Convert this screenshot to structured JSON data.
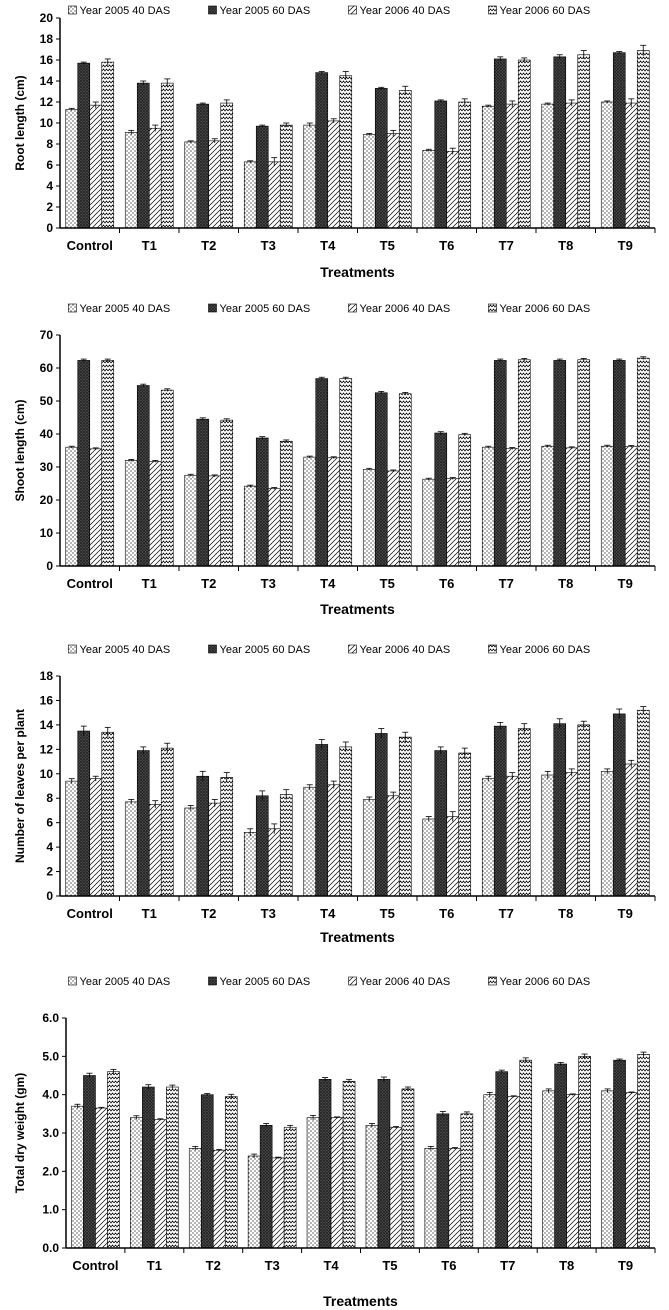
{
  "colors": {
    "axis": "#000000",
    "bar_stroke": "#000000",
    "background": "#ffffff"
  },
  "pattern_names": [
    "dots",
    "dark-crosshatch",
    "diagonal-hatch",
    "wave-zigzag"
  ],
  "chart_data": [
    {
      "type": "bar",
      "xlabel": "Treatments",
      "ylabel": "Root length (cm)",
      "ylim": [
        0,
        20
      ],
      "yticks": [
        "0",
        "2",
        "4",
        "6",
        "8",
        "10",
        "12",
        "14",
        "16",
        "18",
        "20"
      ],
      "grid": false,
      "legend": "top",
      "categories": [
        "Control",
        "T1",
        "T2",
        "T3",
        "T4",
        "T5",
        "T6",
        "T7",
        "T8",
        "T9"
      ],
      "series": [
        {
          "name": "Year 2005 40 DAS",
          "values": [
            11.3,
            9.1,
            8.2,
            6.3,
            9.8,
            8.9,
            7.4,
            11.6,
            11.8,
            12.0
          ],
          "errors": [
            0.1,
            0.2,
            0.1,
            0.1,
            0.2,
            0.1,
            0.1,
            0.1,
            0.1,
            0.1
          ]
        },
        {
          "name": "Year 2005 60 DAS",
          "values": [
            15.7,
            13.8,
            11.8,
            9.7,
            14.8,
            13.3,
            12.1,
            16.1,
            16.3,
            16.7
          ],
          "errors": [
            0.1,
            0.2,
            0.1,
            0.1,
            0.1,
            0.1,
            0.1,
            0.2,
            0.2,
            0.1
          ]
        },
        {
          "name": "Year 2006 40 DAS",
          "values": [
            11.7,
            9.5,
            8.3,
            6.3,
            10.2,
            9.0,
            7.3,
            11.8,
            11.9,
            11.9
          ],
          "errors": [
            0.3,
            0.3,
            0.2,
            0.4,
            0.2,
            0.3,
            0.3,
            0.3,
            0.3,
            0.4
          ]
        },
        {
          "name": "Year 2006 60 DAS",
          "values": [
            15.8,
            13.8,
            11.9,
            9.8,
            14.5,
            13.1,
            12.0,
            16.0,
            16.5,
            16.9
          ],
          "errors": [
            0.3,
            0.4,
            0.3,
            0.2,
            0.4,
            0.4,
            0.3,
            0.2,
            0.4,
            0.5
          ]
        }
      ]
    },
    {
      "type": "bar",
      "xlabel": "Treatments",
      "ylabel": "Shoot length (cm)",
      "ylim": [
        0,
        70
      ],
      "yticks": [
        "0",
        "10",
        "20",
        "30",
        "40",
        "50",
        "60",
        "70"
      ],
      "grid": false,
      "legend": "top",
      "categories": [
        "Control",
        "T1",
        "T2",
        "T3",
        "T4",
        "T5",
        "T6",
        "T7",
        "T8",
        "T9"
      ],
      "series": [
        {
          "name": "Year 2005 40 DAS",
          "values": [
            36.0,
            32.0,
            27.5,
            24.2,
            33.0,
            29.3,
            26.3,
            36.0,
            36.3,
            36.3
          ],
          "errors": [
            0.3,
            0.3,
            0.3,
            0.3,
            0.3,
            0.3,
            0.3,
            0.3,
            0.3,
            0.3
          ]
        },
        {
          "name": "Year 2005 60 DAS",
          "values": [
            62.3,
            54.7,
            44.5,
            38.8,
            56.8,
            52.5,
            40.3,
            62.3,
            62.3,
            62.3
          ],
          "errors": [
            0.4,
            0.4,
            0.4,
            0.4,
            0.4,
            0.4,
            0.4,
            0.4,
            0.4,
            0.4
          ]
        },
        {
          "name": "Year 2006 40 DAS",
          "values": [
            35.5,
            31.7,
            27.3,
            23.5,
            32.8,
            28.8,
            26.5,
            35.6,
            35.8,
            36.2
          ],
          "errors": [
            0.3,
            0.3,
            0.3,
            0.3,
            0.3,
            0.3,
            0.3,
            0.3,
            0.3,
            0.3
          ]
        },
        {
          "name": "Year 2006 60 DAS",
          "values": [
            62.3,
            53.3,
            44.2,
            37.8,
            56.8,
            52.2,
            39.8,
            62.5,
            62.5,
            63.0
          ],
          "errors": [
            0.4,
            0.4,
            0.4,
            0.4,
            0.4,
            0.4,
            0.4,
            0.4,
            0.4,
            0.4
          ]
        }
      ]
    },
    {
      "type": "bar",
      "xlabel": "Treatments",
      "ylabel": "Number of leaves per plant",
      "ylim": [
        0,
        18
      ],
      "yticks": [
        "0",
        "2",
        "4",
        "6",
        "8",
        "10",
        "12",
        "14",
        "16",
        "18"
      ],
      "grid": false,
      "legend": "top",
      "categories": [
        "Control",
        "T1",
        "T2",
        "T3",
        "T4",
        "T5",
        "T6",
        "T7",
        "T8",
        "T9"
      ],
      "series": [
        {
          "name": "Year 2005 40 DAS",
          "values": [
            9.4,
            7.7,
            7.2,
            5.2,
            8.9,
            7.9,
            6.3,
            9.6,
            9.9,
            10.2
          ],
          "errors": [
            0.2,
            0.2,
            0.2,
            0.3,
            0.2,
            0.2,
            0.2,
            0.2,
            0.3,
            0.2
          ]
        },
        {
          "name": "Year 2005 60 DAS",
          "values": [
            13.5,
            11.9,
            9.8,
            8.2,
            12.4,
            13.3,
            11.9,
            13.9,
            14.1,
            14.9
          ],
          "errors": [
            0.4,
            0.3,
            0.4,
            0.4,
            0.4,
            0.4,
            0.3,
            0.3,
            0.4,
            0.4
          ]
        },
        {
          "name": "Year 2006 40 DAS",
          "values": [
            9.6,
            7.5,
            7.6,
            5.5,
            9.1,
            8.2,
            6.5,
            9.8,
            10.1,
            10.8
          ],
          "errors": [
            0.2,
            0.3,
            0.3,
            0.4,
            0.3,
            0.3,
            0.4,
            0.3,
            0.3,
            0.3
          ]
        },
        {
          "name": "Year 2006 60 DAS",
          "values": [
            13.4,
            12.1,
            9.7,
            8.3,
            12.2,
            13.0,
            11.7,
            13.7,
            14.0,
            15.2
          ],
          "errors": [
            0.4,
            0.4,
            0.4,
            0.4,
            0.4,
            0.4,
            0.4,
            0.4,
            0.3,
            0.3
          ]
        }
      ]
    },
    {
      "type": "bar",
      "xlabel": "Treatments",
      "ylabel": "Total dry weight (gm)",
      "ylim": [
        0,
        6
      ],
      "yticks": [
        "0.0",
        "1.0",
        "2.0",
        "3.0",
        "4.0",
        "5.0",
        "6.0"
      ],
      "grid": false,
      "legend": "top",
      "categories": [
        "Control",
        "T1",
        "T2",
        "T3",
        "T4",
        "T5",
        "T6",
        "T7",
        "T8",
        "T9"
      ],
      "series": [
        {
          "name": "Year 2005 40 DAS",
          "values": [
            3.7,
            3.4,
            2.6,
            2.4,
            3.4,
            3.2,
            2.6,
            4.0,
            4.1,
            4.1
          ],
          "errors": [
            0.05,
            0.05,
            0.05,
            0.05,
            0.06,
            0.05,
            0.05,
            0.06,
            0.05,
            0.05
          ]
        },
        {
          "name": "Year 2005 60 DAS",
          "values": [
            4.5,
            4.2,
            4.0,
            3.2,
            4.4,
            4.4,
            3.5,
            4.6,
            4.8,
            4.9
          ],
          "errors": [
            0.06,
            0.06,
            0.03,
            0.05,
            0.05,
            0.06,
            0.06,
            0.04,
            0.04,
            0.03
          ]
        },
        {
          "name": "Year 2006 40 DAS",
          "values": [
            3.65,
            3.35,
            2.55,
            2.35,
            3.4,
            3.15,
            2.6,
            3.95,
            4.0,
            4.05
          ],
          "errors": [
            0.02,
            0.02,
            0.02,
            0.02,
            0.02,
            0.02,
            0.02,
            0.02,
            0.02,
            0.02
          ]
        },
        {
          "name": "Year 2006 60 DAS",
          "values": [
            4.6,
            4.2,
            3.95,
            3.15,
            4.35,
            4.15,
            3.5,
            4.9,
            5.0,
            5.05
          ],
          "errors": [
            0.06,
            0.05,
            0.06,
            0.05,
            0.05,
            0.05,
            0.05,
            0.06,
            0.06,
            0.06
          ]
        }
      ]
    }
  ]
}
